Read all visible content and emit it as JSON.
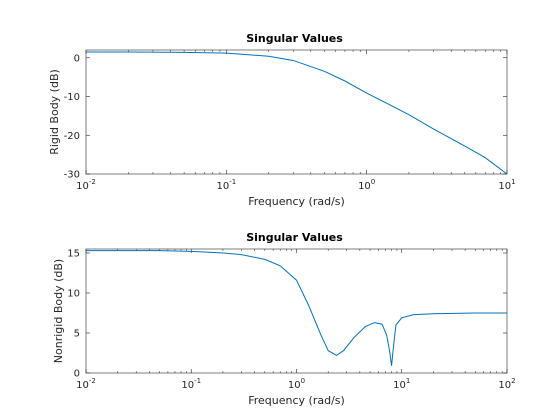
{
  "chart_data": [
    {
      "type": "line",
      "title": "Singular Values",
      "xlabel": "Frequency (rad/s)",
      "ylabel": "Rigid Body (dB)",
      "xscale": "log",
      "xlim": [
        0.01,
        10
      ],
      "ylim": [
        -30,
        2
      ],
      "xticks": [
        0.01,
        0.1,
        1,
        10
      ],
      "xtick_labels": [
        {
          "base": "10",
          "exp": "-2"
        },
        {
          "base": "10",
          "exp": "-1"
        },
        {
          "base": "10",
          "exp": "0"
        },
        {
          "base": "10",
          "exp": "1"
        }
      ],
      "yticks": [
        -30,
        -20,
        -10,
        0
      ],
      "ytick_labels": [
        "-30",
        "-20",
        "-10",
        "0"
      ],
      "grid": false,
      "line_color": "#0072BD",
      "series": [
        {
          "x": [
            0.01,
            0.02,
            0.05,
            0.1,
            0.2,
            0.3,
            0.5,
            0.7,
            1.0,
            2.0,
            3.0,
            5.0,
            7.0,
            10.0
          ],
          "y": [
            1.5,
            1.5,
            1.4,
            1.2,
            0.4,
            -0.7,
            -3.5,
            -6.0,
            -9.1,
            -14.7,
            -18.4,
            -22.8,
            -25.8,
            -30.0
          ]
        }
      ]
    },
    {
      "type": "line",
      "title": "Singular Values",
      "xlabel": "Frequency (rad/s)",
      "ylabel": "Nonrigid Body (dB)",
      "xscale": "log",
      "xlim": [
        0.01,
        100
      ],
      "ylim": [
        0,
        15.5
      ],
      "xticks": [
        0.01,
        0.1,
        1,
        10,
        100
      ],
      "xtick_labels": [
        {
          "base": "10",
          "exp": "-2"
        },
        {
          "base": "10",
          "exp": "-1"
        },
        {
          "base": "10",
          "exp": "0"
        },
        {
          "base": "10",
          "exp": "1"
        },
        {
          "base": "10",
          "exp": "2"
        }
      ],
      "yticks": [
        0,
        5,
        10,
        15
      ],
      "ytick_labels": [
        "0",
        "5",
        "10",
        "15"
      ],
      "grid": false,
      "line_color": "#0072BD",
      "series": [
        {
          "x": [
            0.01,
            0.05,
            0.1,
            0.2,
            0.3,
            0.5,
            0.7,
            1.0,
            1.3,
            1.7,
            2.0,
            2.4,
            2.8,
            3.5,
            4.5,
            5.5,
            6.5,
            7.2,
            7.7,
            8.0,
            8.3,
            8.8,
            10,
            13,
            20,
            50,
            100
          ],
          "y": [
            15.3,
            15.3,
            15.2,
            15.0,
            14.8,
            14.2,
            13.4,
            11.6,
            8.5,
            4.8,
            2.8,
            2.2,
            2.8,
            4.4,
            5.8,
            6.3,
            6.1,
            4.7,
            2.6,
            0.9,
            3.0,
            6.0,
            6.9,
            7.3,
            7.4,
            7.5,
            7.5
          ]
        }
      ]
    }
  ]
}
